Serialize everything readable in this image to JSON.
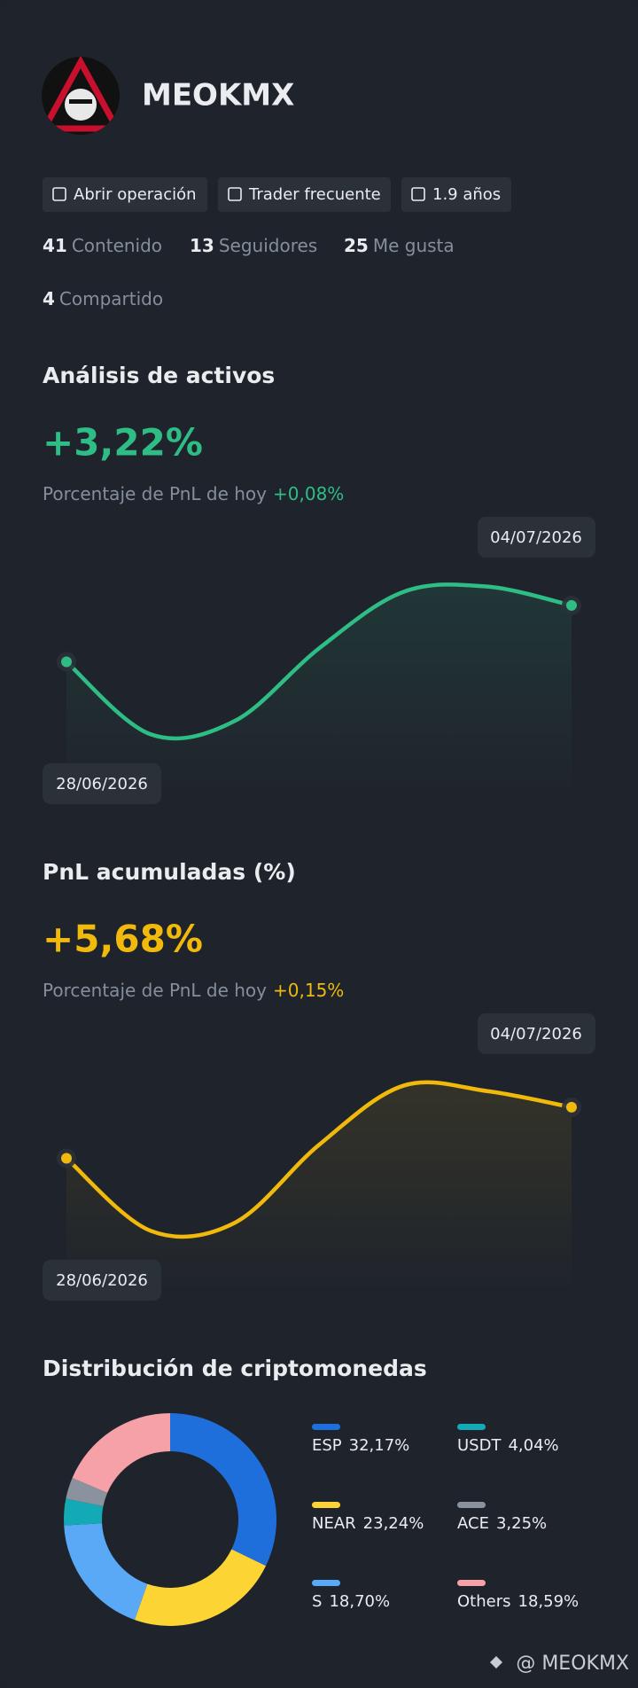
{
  "profile": {
    "name": "MEOKMX",
    "tags": [
      "Abrir operación",
      "Trader frecuente",
      "1.9 años"
    ],
    "stats": [
      {
        "value": 41,
        "label": "Contenido"
      },
      {
        "value": 13,
        "label": "Seguidores"
      },
      {
        "value": 25,
        "label": "Me gusta"
      },
      {
        "value": 4,
        "label": "Compartido"
      }
    ]
  },
  "chart_data": [
    {
      "type": "line",
      "title": "Análisis de activos",
      "headline": "+3,22%",
      "subtitle": "Porcentaje de PnL de hoy",
      "subtitle_value": "+0,08%",
      "categories": [
        "28/06/2026",
        null,
        null,
        null,
        null,
        null,
        "04/07/2026"
      ],
      "values": [
        50,
        23,
        28,
        55,
        76,
        78,
        71
      ],
      "color": "#2ebd85",
      "ylim": [
        0,
        100
      ]
    },
    {
      "type": "line",
      "title": "PnL acumuladas (%)",
      "headline": "+5,68%",
      "subtitle": "Porcentaje de PnL de hoy",
      "subtitle_value": "+0,15%",
      "categories": [
        "28/06/2026",
        null,
        null,
        null,
        null,
        null,
        "04/07/2026"
      ],
      "values": [
        50,
        23,
        26,
        55,
        77,
        75,
        69
      ],
      "color": "#f0b90b",
      "ylim": [
        0,
        100
      ]
    },
    {
      "type": "pie",
      "title": "Distribución de criptomonedas",
      "categories": [
        "ESP",
        "NEAR",
        "S",
        "USDT",
        "ACE",
        "Others"
      ],
      "values": [
        32.17,
        23.24,
        18.7,
        4.04,
        3.25,
        18.59
      ],
      "value_labels": [
        "32,17%",
        "23,24%",
        "18,70%",
        "4,04%",
        "3,25%",
        "18,59%"
      ],
      "colors": [
        "#1e6fdc",
        "#fcd535",
        "#5aa9f6",
        "#13a9b5",
        "#8a929e",
        "#f6a0a8"
      ]
    }
  ],
  "watermark": "@ MEOKMX"
}
